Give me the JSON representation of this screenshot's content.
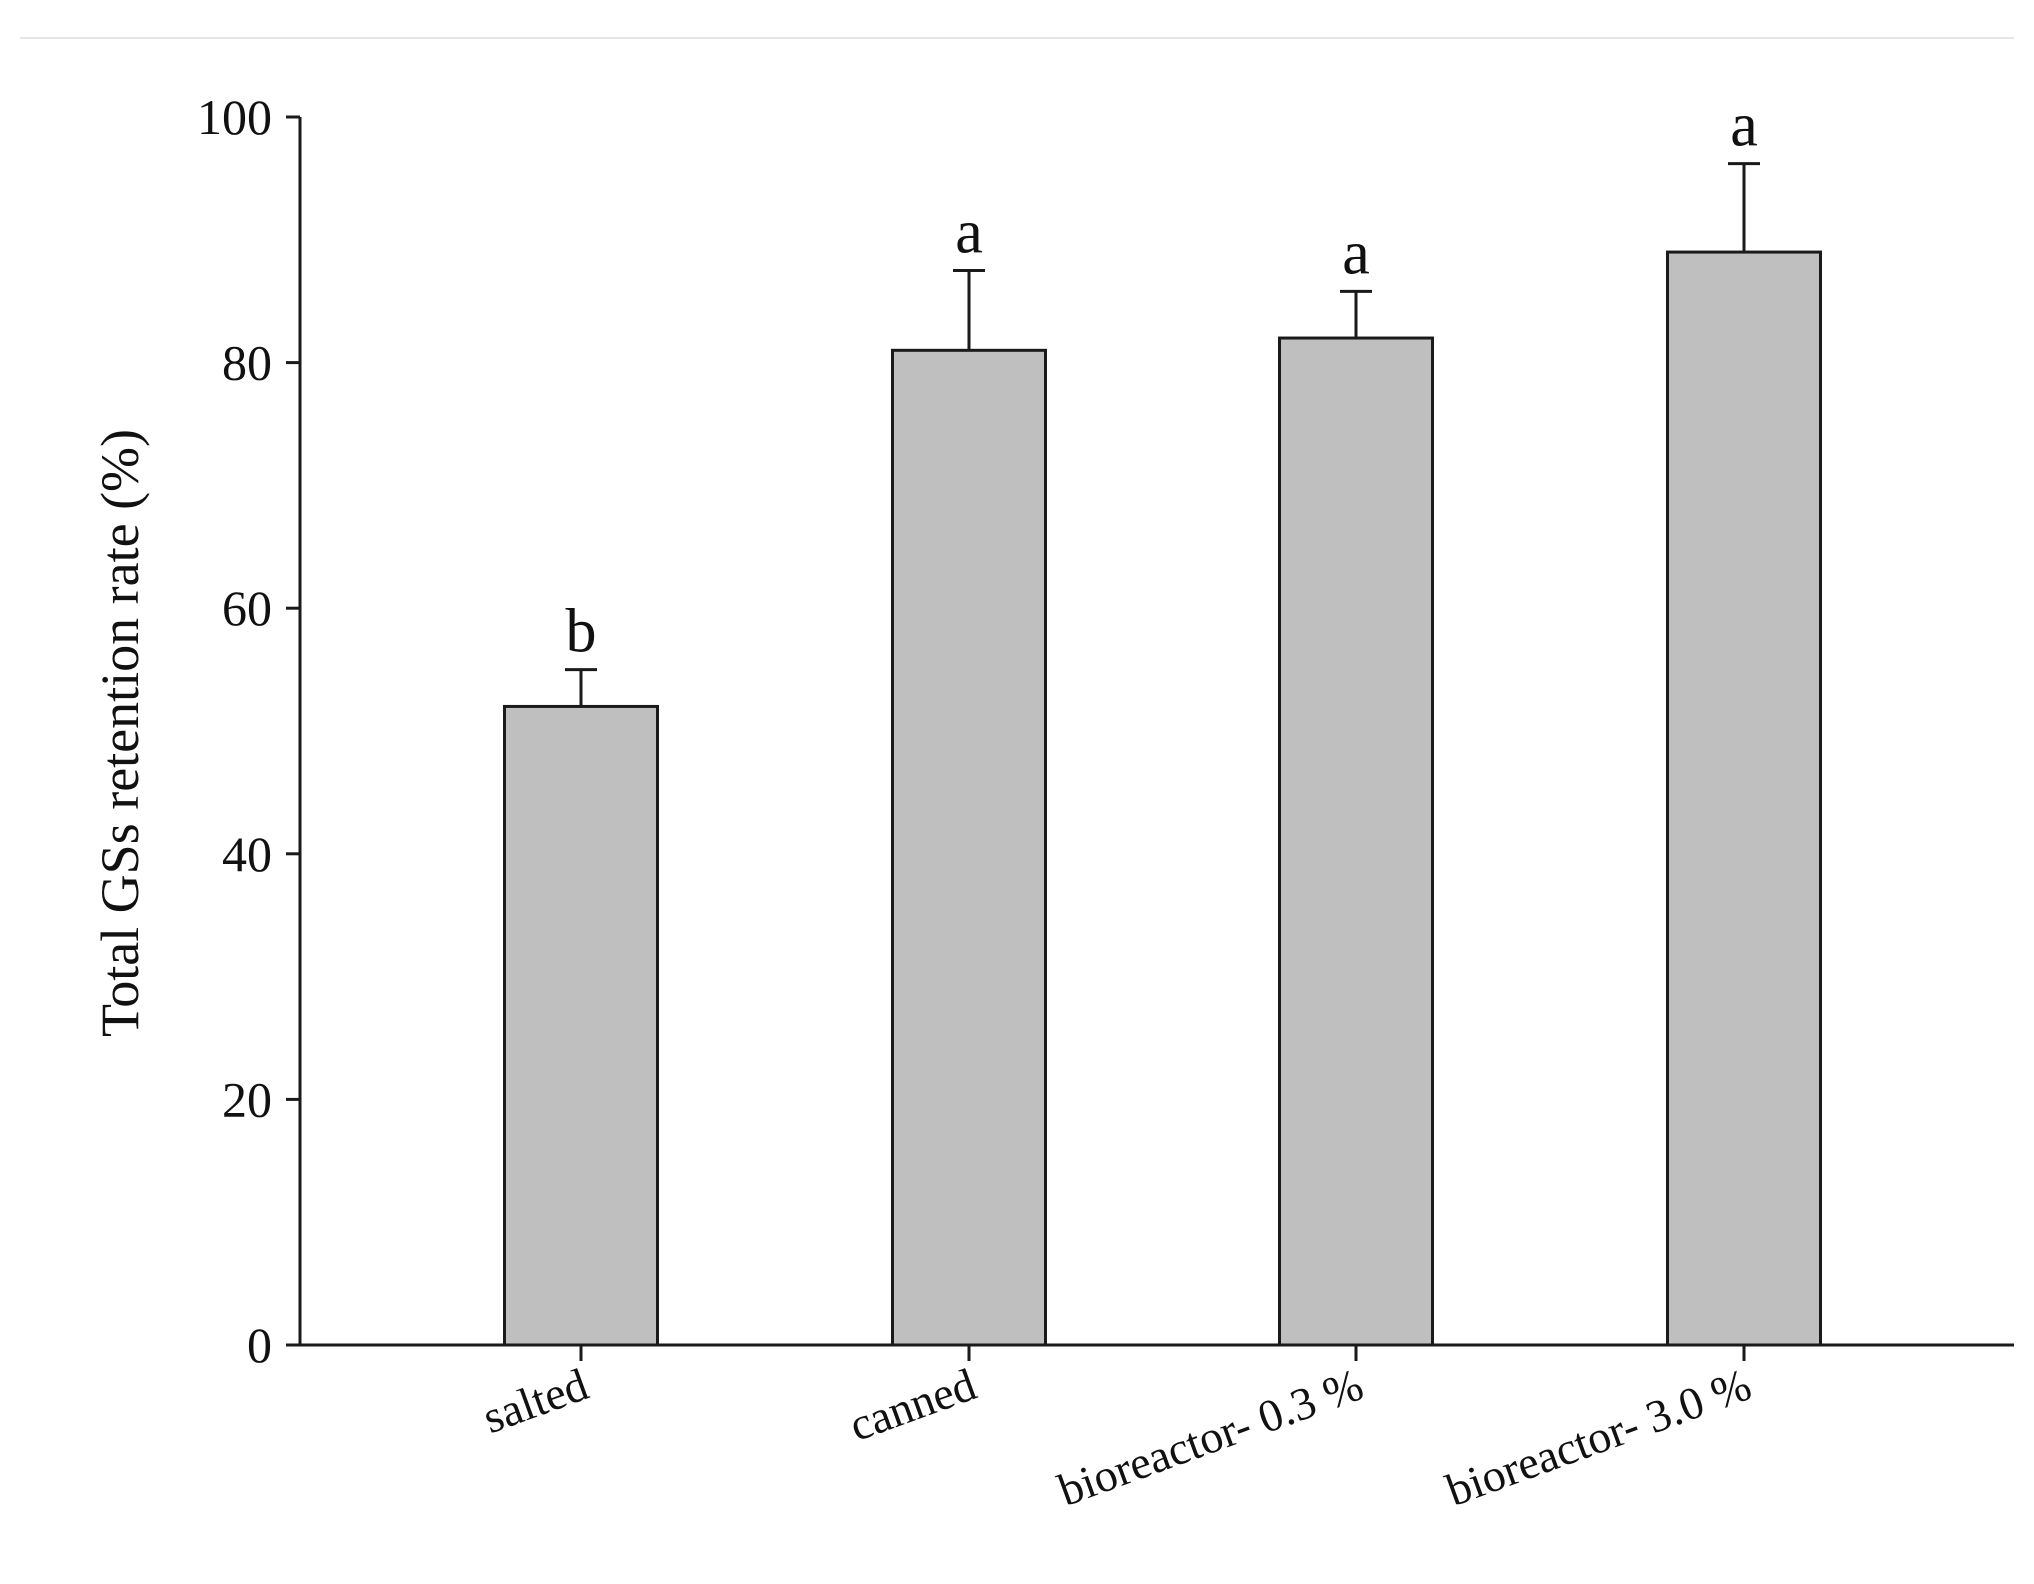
{
  "chart_data": {
    "type": "bar",
    "title": "",
    "xlabel": "",
    "ylabel": "Total GSs retention rate (%)",
    "ylim": [
      0,
      100
    ],
    "yticks": [
      0,
      20,
      40,
      60,
      80,
      100
    ],
    "grid": false,
    "categories": [
      "salted",
      "canned",
      "bioreactor- 0.3 %",
      "bioreactor- 3.0 %"
    ],
    "values": [
      52,
      81,
      82,
      89
    ],
    "error_bars": [
      3,
      6.5,
      3.8,
      7.2
    ],
    "significance_letters": [
      "b",
      "a",
      "a",
      "a"
    ],
    "colors": {
      "bar_fill": "#bfbfbf",
      "bar_stroke": "#1a1a1a",
      "axis": "#1a1a1a",
      "top_rule": "#e6e6e6"
    }
  }
}
